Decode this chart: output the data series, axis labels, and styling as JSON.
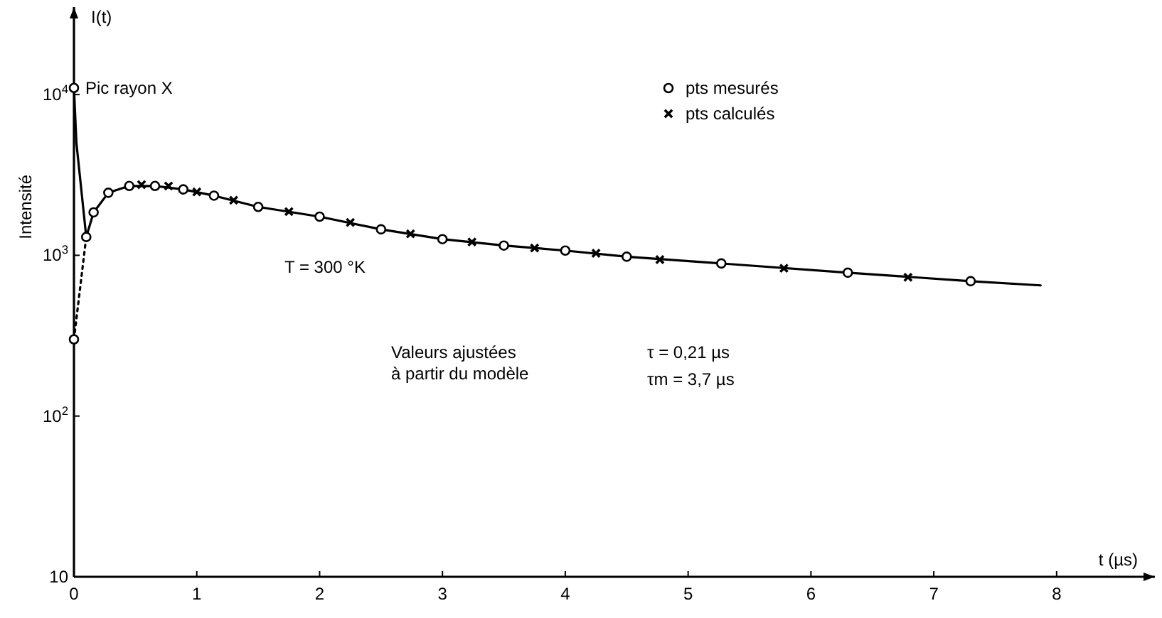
{
  "chart_data": {
    "type": "scatter",
    "ylabel": "Intensité",
    "xlabel": "t (µs)",
    "log": "y",
    "grid": false,
    "legend": "top right",
    "xlim": [
      0,
      8.8
    ],
    "ylim": [
      10,
      35000
    ],
    "xticks": [
      0,
      1,
      2,
      3,
      4,
      5,
      6,
      7,
      8
    ],
    "yticks": [
      {
        "value": 10,
        "label": "10"
      },
      {
        "value": 100,
        "label": "10$^{2}$"
      },
      {
        "value": 1000,
        "label": "10$^{3}$"
      },
      {
        "value": 10000,
        "label": "10$^{4}$"
      }
    ],
    "series": [
      {
        "type": "line",
        "color": "#000000",
        "marker": "none",
        "line_style": "solid",
        "x": [
          0,
          0.02,
          0.1,
          0.16,
          0.28,
          0.45,
          0.66,
          0.89,
          1.14,
          1.5,
          2,
          2.5,
          3,
          3.5,
          4,
          4.5,
          5.27,
          6.3,
          7.3,
          7.87
        ],
        "values": [
          11000,
          5000,
          1300,
          1850,
          2450,
          2700,
          2700,
          2570,
          2350,
          2000,
          1740,
          1450,
          1260,
          1150,
          1070,
          980,
          890,
          780,
          690,
          650
        ]
      },
      {
        "type": "line",
        "color": "#000000",
        "marker": "none",
        "line_style": "dotted",
        "x": [
          0,
          0.1
        ],
        "values": [
          300,
          1300
        ]
      },
      {
        "name": "pts mesurés",
        "color": "#000000",
        "marker": "circle",
        "x": [
          0,
          0,
          0.1,
          0.16,
          0.28,
          0.45,
          0.66,
          0.89,
          1.14,
          1.5,
          2,
          2.5,
          3,
          3.5,
          4,
          4.5,
          5.27,
          6.3,
          7.3
        ],
        "values": [
          300,
          11000,
          1300,
          1850,
          2450,
          2700,
          2700,
          2570,
          2350,
          2000,
          1740,
          1450,
          1260,
          1150,
          1070,
          980,
          890,
          780,
          690
        ]
      },
      {
        "name": "pts calculés",
        "color": "#000000",
        "marker": "cross",
        "x": [
          0.55,
          0.77,
          1.0,
          1.3,
          1.75,
          2.25,
          2.74,
          3.24,
          3.75,
          4.25,
          4.77,
          5.78,
          6.79
        ],
        "values": [
          2750,
          2700,
          2480,
          2200,
          1870,
          1600,
          1360,
          1210,
          1110,
          1030,
          940,
          830,
          730
        ]
      }
    ],
    "annotations": [
      "I(t)",
      {
        "text": "Pic rayon X",
        "x": 0,
        "y": 11000
      },
      "T = 300 °K",
      "Valeurs ajustées\nà partir du modèle",
      "τ = 0,21 µs",
      "τm = 3,7 µs"
    ]
  }
}
